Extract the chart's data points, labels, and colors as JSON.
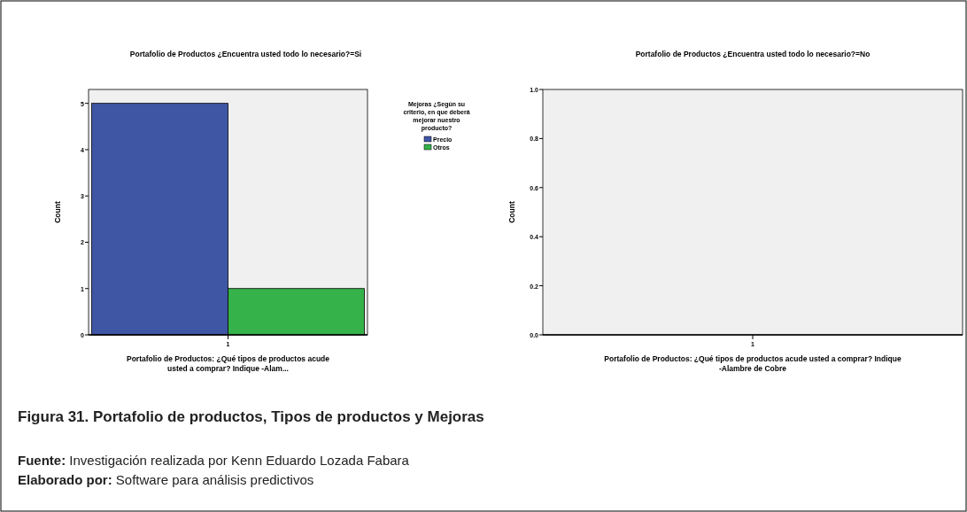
{
  "chart_data": [
    {
      "type": "bar",
      "title": "Portafolio de Productos ¿Encuentra usted todo lo necesario?=Si",
      "xlabel": "Portafolio de Productos: ¿Qué tipos de productos acude usted a comprar? Indique -Alam...",
      "ylabel": "Count",
      "categories": [
        "1"
      ],
      "series": [
        {
          "name": "Precio",
          "color": "#3f56a5",
          "values": [
            5
          ]
        },
        {
          "name": "Otros",
          "color": "#35b24a",
          "values": [
            1
          ]
        }
      ],
      "ylim": [
        0,
        5.3
      ],
      "yticks": [
        0,
        1,
        2,
        3,
        4,
        5
      ],
      "legend": "right",
      "legend_title": "Mejoras ¿Según su criterio, en que deberá mejorar nuestro producto?"
    },
    {
      "type": "bar",
      "title": "Portafolio de Productos ¿Encuentra usted todo lo necesario?=No",
      "xlabel": "Portafolio de Productos: ¿Qué tipos de productos acude usted a comprar? Indique -Alambre de Cobre",
      "ylabel": "Count",
      "categories": [
        "1"
      ],
      "values": [
        null
      ],
      "ylim": [
        0,
        1.0
      ],
      "yticks": [
        {
          "value": 0,
          "label": "0.0"
        },
        {
          "value": 0.2,
          "label": "0.2"
        },
        {
          "value": 0.4,
          "label": "0.4"
        },
        {
          "value": 0.6,
          "label": "0.6"
        },
        {
          "value": 0.8,
          "label": "0.8"
        },
        {
          "value": 1.0,
          "label": "1.0"
        }
      ]
    },
    {
      "type": "other",
      "title": "Figura 31.  Portafolio de productos, Tipos de productos y Mejoras",
      "annotations": [
        "Fuente: Investigación realizada por Kenn Eduardo Lozada Fabara",
        "Elaborado por: Software para análisis predictivos"
      ]
    }
  ]
}
